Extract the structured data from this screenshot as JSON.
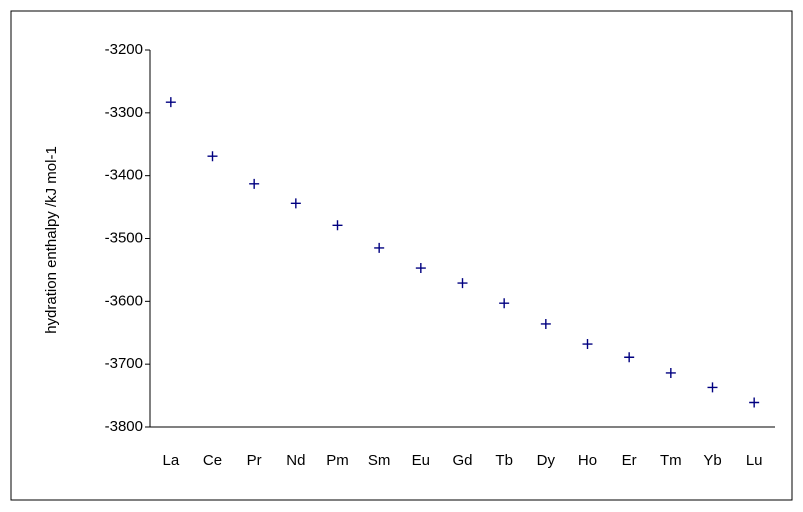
{
  "chart_data": {
    "type": "scatter",
    "y_label": "hydration enthalpy /kJ mol-1",
    "categories": [
      "La",
      "Ce",
      "Pr",
      "Nd",
      "Pm",
      "Sm",
      "Eu",
      "Gd",
      "Tb",
      "Dy",
      "Ho",
      "Er",
      "Tm",
      "Yb",
      "Lu"
    ],
    "values": [
      -3283,
      -3369,
      -3413,
      -3444,
      -3479,
      -3515,
      -3547,
      -3571,
      -3603,
      -3636,
      -3668,
      -3689,
      -3714,
      -3737,
      -3761
    ],
    "color": "#000080",
    "marker": "plus",
    "ylim": [
      -3800,
      -3200
    ],
    "yticks": [
      -3800,
      -3700,
      -3600,
      -3500,
      -3400,
      -3300,
      -3200
    ],
    "grid": false
  }
}
